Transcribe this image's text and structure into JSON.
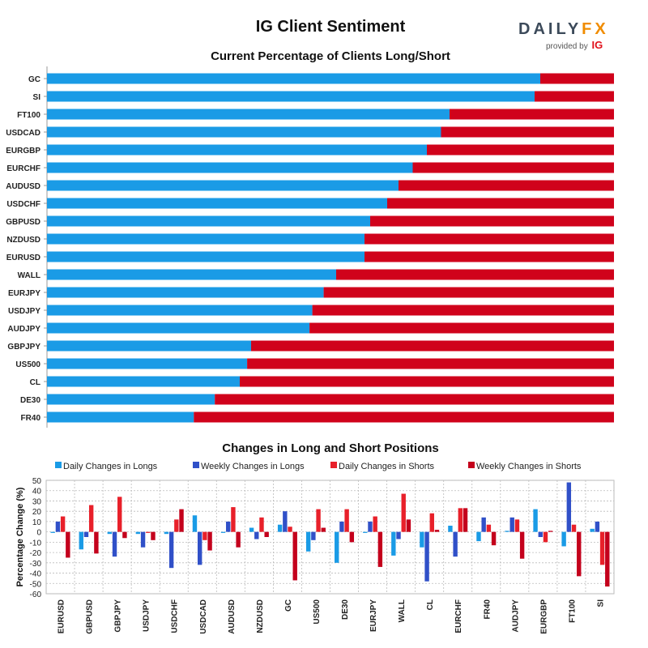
{
  "header": {
    "title": "IG Client Sentiment",
    "logo_text_main": "DAILY",
    "logo_text_accent": "FX",
    "logo_provided": "provided by",
    "logo_ig": "IG"
  },
  "colors": {
    "long": "#1a9be6",
    "short": "#d0021b",
    "daily_longs": "#1a9be6",
    "weekly_longs": "#3050c8",
    "daily_shorts": "#e8202a",
    "weekly_shorts": "#c4001c"
  },
  "chart_data": [
    {
      "type": "bar",
      "orientation": "horizontal",
      "stacked": true,
      "title": "Current Percentage of Clients Long/Short",
      "categories": [
        "GC",
        "SI",
        "FT100",
        "USDCAD",
        "EURGBP",
        "EURCHF",
        "AUDUSD",
        "USDCHF",
        "GBPUSD",
        "NZDUSD",
        "EURUSD",
        "WALL",
        "EURJPY",
        "USDJPY",
        "AUDJPY",
        "GBPJPY",
        "US500",
        "CL",
        "DE30",
        "FR40"
      ],
      "series": [
        {
          "name": "Long",
          "values": [
            87,
            86,
            71,
            69.5,
            67,
            64.5,
            62,
            60,
            57,
            56,
            56,
            51,
            48.8,
            46.8,
            46.3,
            36,
            35.3,
            34,
            29.6,
            25.9
          ]
        },
        {
          "name": "Short",
          "values": [
            13,
            14,
            29,
            30.5,
            33,
            35.5,
            38,
            40,
            43,
            44,
            44,
            49,
            51.2,
            53.2,
            53.7,
            64,
            64.7,
            66,
            70.4,
            74.1
          ]
        }
      ],
      "xlim": [
        0,
        100
      ]
    },
    {
      "type": "bar",
      "title": "Changes in Long and Short Positions",
      "ylabel": "Percentage Change (%)",
      "ylim": [
        -60,
        50
      ],
      "yticks": [
        50,
        40,
        30,
        20,
        10,
        0,
        -10,
        -20,
        -30,
        -40,
        -50,
        -60
      ],
      "legend_position": "top",
      "categories": [
        "EURUSD",
        "GBPUSD",
        "GBPJPY",
        "USDJPY",
        "USDCHF",
        "USDCAD",
        "AUDUSD",
        "NZDUSD",
        "GC",
        "US500",
        "DE30",
        "EURJPY",
        "WALL",
        "CL",
        "EURCHF",
        "FR40",
        "AUDJPY",
        "EURGBP",
        "FT100",
        "SI"
      ],
      "series": [
        {
          "name": "Daily Changes in Longs",
          "values": [
            -1,
            -17,
            -2,
            -2,
            -2,
            16,
            -1,
            4,
            7,
            -19,
            -30,
            -1,
            -23,
            -15,
            6,
            -9,
            1,
            22,
            -14,
            3
          ]
        },
        {
          "name": "Weekly Changes in Longs",
          "values": [
            10,
            -5,
            -24,
            -15,
            -35,
            -32,
            10,
            -7,
            20,
            -8,
            10,
            10,
            -7,
            -48,
            -24,
            14,
            14,
            -5,
            48,
            10
          ]
        },
        {
          "name": "Daily Changes in Shorts",
          "values": [
            15,
            26,
            34,
            -1,
            12,
            -8,
            24,
            14,
            5,
            22,
            22,
            15,
            37,
            18,
            23,
            7,
            12,
            -10,
            7,
            -32
          ]
        },
        {
          "name": "Weekly Changes in Shorts",
          "values": [
            -25,
            -21,
            -6,
            -8,
            22,
            -18,
            -15,
            -5,
            -47,
            4,
            -10,
            -34,
            12,
            2,
            23,
            -13,
            -26,
            1,
            -43,
            -53
          ]
        }
      ]
    }
  ]
}
